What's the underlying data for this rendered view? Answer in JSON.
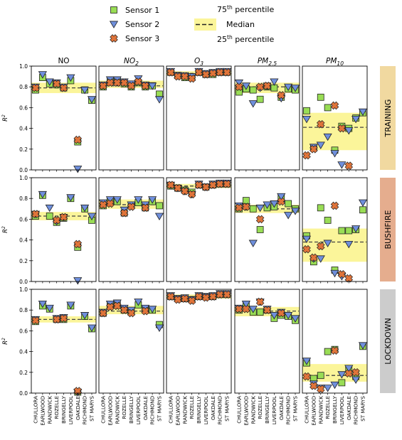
{
  "chart_data": {
    "type": "scatter",
    "legend": {
      "placement": "top",
      "sensor_entries": [
        "Sensor 1",
        "Sensor 2",
        "Sensor 3"
      ],
      "band": {
        "upper": {
          "main": "75",
          "sup": "th",
          "rest": " percentile"
        },
        "median": "Median",
        "lower": {
          "main": "25",
          "sup": "th",
          "rest": " percentile"
        }
      }
    },
    "colors": {
      "sensor1": "#99dd55",
      "sensor2": "#6f8fdc",
      "sensor3": "#e0743a",
      "band": "#fbf59a",
      "median": "#444444"
    },
    "ylabel": {
      "main": "R",
      "sup": "2"
    },
    "ylim": [
      0,
      1
    ],
    "yticks": [
      "0.0",
      "0.2",
      "0.4",
      "0.6",
      "0.8",
      "1.0"
    ],
    "columns": [
      {
        "label": "NO",
        "sub": ""
      },
      {
        "label": "NO",
        "sub": "2"
      },
      {
        "label": "O",
        "sub": "3"
      },
      {
        "label": "PM",
        "sub": "2.5"
      },
      {
        "label": "PM",
        "sub": "10"
      }
    ],
    "rows": [
      {
        "label": "TRAINING",
        "color": "#f1d9a0"
      },
      {
        "label": "BUSHFIRE",
        "color": "#e5ad8e"
      },
      {
        "label": "LOCKDOWN",
        "color": "#cccccc"
      }
    ],
    "sites": [
      "CHULLORA",
      "EARLWOOD",
      "RANDWICK",
      "ROZELLE",
      "BRINGELLY",
      "LIVERPOOL",
      "OAKDALE",
      "RICHMOND",
      "ST MARYS"
    ],
    "panels": [
      [
        {
          "band": [
            0.74,
            0.84
          ],
          "median": 0.79,
          "s1": [
            0.77,
            0.89,
            0.83,
            0.82,
            0.79,
            0.86,
            0.27,
            0.77,
            0.67
          ],
          "s2": [
            0.8,
            0.92,
            0.85,
            0.84,
            0.8,
            0.89,
            0.01,
            0.77,
            0.68
          ],
          "s3": [
            0.79,
            null,
            null,
            0.83,
            0.79,
            null,
            0.29,
            null,
            null
          ]
        },
        {
          "band": [
            0.79,
            0.86
          ],
          "median": 0.81,
          "s1": [
            0.8,
            0.85,
            0.86,
            0.83,
            0.8,
            0.84,
            0.8,
            0.81,
            0.73
          ],
          "s2": [
            0.82,
            0.87,
            0.87,
            0.85,
            0.83,
            0.88,
            0.82,
            0.81,
            0.68
          ],
          "s3": [
            0.81,
            0.84,
            0.84,
            0.84,
            0.81,
            0.85,
            0.81,
            null,
            null
          ]
        },
        {
          "band": [
            0.91,
            0.95
          ],
          "median": 0.93,
          "s1": [
            0.94,
            0.91,
            0.89,
            0.89,
            0.94,
            0.92,
            0.92,
            0.94,
            0.94
          ],
          "s2": [
            0.95,
            0.91,
            0.91,
            0.9,
            0.95,
            0.93,
            0.94,
            0.95,
            0.95
          ],
          "s3": [
            0.94,
            0.9,
            0.9,
            0.88,
            0.94,
            0.92,
            0.93,
            0.94,
            0.94
          ]
        },
        {
          "band": [
            0.74,
            0.84
          ],
          "median": 0.8,
          "s1": [
            0.75,
            0.78,
            0.77,
            0.68,
            0.8,
            0.79,
            0.7,
            0.78,
            0.77
          ],
          "s2": [
            0.84,
            0.81,
            0.64,
            0.79,
            0.81,
            0.85,
            0.69,
            0.8,
            0.79
          ],
          "s3": [
            0.8,
            null,
            null,
            0.8,
            0.81,
            null,
            0.72,
            null,
            null
          ]
        },
        {
          "band": [
            0.19,
            0.55
          ],
          "median": 0.41,
          "s1": [
            0.57,
            0.21,
            0.7,
            0.6,
            0.19,
            0.42,
            0.4,
            0.5,
            0.55
          ],
          "s2": [
            0.49,
            0.22,
            0.24,
            0.32,
            0.16,
            0.05,
            0.38,
            0.49,
            0.56
          ],
          "s3": [
            0.14,
            0.2,
            0.44,
            null,
            0.62,
            0.4,
            0.04,
            null,
            null
          ]
        }
      ],
      [
        {
          "band": [
            0.59,
            0.67
          ],
          "median": 0.63,
          "s1": [
            0.63,
            0.83,
            0.63,
            0.57,
            0.61,
            0.8,
            0.33,
            0.7,
            0.59
          ],
          "s2": [
            0.65,
            0.84,
            0.71,
            0.58,
            0.62,
            0.81,
            0.01,
            0.71,
            0.63
          ],
          "s3": [
            0.65,
            null,
            null,
            0.59,
            0.62,
            null,
            0.36,
            null,
            null
          ]
        },
        {
          "band": [
            0.7,
            0.79
          ],
          "median": 0.74,
          "s1": [
            0.73,
            0.77,
            0.77,
            0.66,
            0.73,
            0.76,
            0.71,
            0.77,
            0.73
          ],
          "s2": [
            0.76,
            0.79,
            0.79,
            0.69,
            0.74,
            0.79,
            0.74,
            0.79,
            0.63
          ],
          "s3": [
            0.74,
            0.75,
            null,
            0.66,
            0.72,
            null,
            0.71,
            null,
            null
          ]
        },
        {
          "band": [
            0.9,
            0.94
          ],
          "median": 0.92,
          "s1": [
            0.92,
            0.9,
            0.88,
            0.86,
            0.93,
            0.91,
            0.93,
            0.94,
            0.94
          ],
          "s2": [
            0.93,
            0.9,
            0.87,
            0.84,
            0.94,
            0.91,
            0.94,
            0.95,
            0.95
          ],
          "s3": [
            0.93,
            0.9,
            0.87,
            0.84,
            0.93,
            0.91,
            0.93,
            0.94,
            0.94
          ]
        },
        {
          "band": [
            0.66,
            0.74
          ],
          "median": 0.7,
          "s1": [
            0.7,
            0.78,
            0.7,
            0.5,
            0.71,
            0.72,
            0.8,
            0.75,
            0.7
          ],
          "s2": [
            0.73,
            0.72,
            0.37,
            0.71,
            0.74,
            0.75,
            0.82,
            0.64,
            0.68
          ],
          "s3": [
            0.71,
            0.72,
            null,
            0.6,
            null,
            null,
            0.77,
            null,
            null
          ]
        },
        {
          "band": [
            0.19,
            0.51
          ],
          "median": 0.38,
          "s1": [
            0.44,
            0.19,
            0.71,
            0.59,
            0.11,
            0.49,
            0.49,
            0.5,
            0.69
          ],
          "s2": [
            0.41,
            0.22,
            0.22,
            0.37,
            0.08,
            0.05,
            0.36,
            0.51,
            0.76
          ],
          "s3": [
            0.31,
            0.23,
            0.34,
            null,
            0.73,
            0.07,
            0.03,
            null,
            null
          ]
        }
      ],
      [
        {
          "band": [
            0.68,
            0.74
          ],
          "median": 0.71,
          "s1": [
            0.69,
            0.84,
            0.81,
            0.71,
            0.71,
            0.84,
            0.01,
            0.74,
            0.62
          ],
          "s2": [
            0.71,
            0.86,
            0.82,
            0.72,
            0.73,
            0.85,
            0.01,
            0.75,
            0.63
          ],
          "s3": [
            0.7,
            null,
            null,
            0.71,
            0.72,
            null,
            0.02,
            null,
            null
          ]
        },
        {
          "band": [
            0.76,
            0.84
          ],
          "median": 0.79,
          "s1": [
            0.77,
            0.84,
            0.85,
            0.8,
            0.78,
            0.85,
            0.8,
            0.8,
            0.66
          ],
          "s2": [
            0.78,
            0.86,
            0.87,
            0.82,
            0.8,
            0.88,
            0.82,
            0.81,
            0.63
          ],
          "s3": [
            0.77,
            0.83,
            0.84,
            0.8,
            0.77,
            null,
            0.79,
            null,
            null
          ]
        },
        {
          "band": [
            0.91,
            0.95
          ],
          "median": 0.93,
          "s1": [
            0.93,
            0.91,
            0.91,
            0.9,
            0.93,
            0.93,
            0.93,
            0.95,
            0.95
          ],
          "s2": [
            0.94,
            0.91,
            0.92,
            0.9,
            0.94,
            0.93,
            0.94,
            0.96,
            0.96
          ],
          "s3": [
            0.93,
            0.9,
            0.91,
            0.89,
            0.93,
            0.92,
            0.93,
            0.95,
            0.95
          ]
        },
        {
          "band": [
            0.74,
            0.83
          ],
          "median": 0.79,
          "s1": [
            0.8,
            0.85,
            0.78,
            0.78,
            0.8,
            0.72,
            0.75,
            0.74,
            0.7
          ],
          "s2": [
            0.82,
            0.86,
            0.81,
            0.88,
            0.81,
            0.75,
            0.78,
            0.75,
            0.72
          ],
          "s3": [
            0.81,
            0.81,
            null,
            0.88,
            0.8,
            null,
            0.77,
            null,
            null
          ]
        },
        {
          "band": [
            0.11,
            0.28
          ],
          "median": 0.17,
          "s1": [
            0.29,
            0.14,
            0.17,
            0.4,
            0.42,
            0.1,
            0.23,
            0.16,
            0.45
          ],
          "s2": [
            0.31,
            0.09,
            0.05,
            0.05,
            0.08,
            0.18,
            0.24,
            0.13,
            0.46
          ],
          "s3": [
            0.16,
            0.07,
            0.04,
            null,
            0.41,
            null,
            0.19,
            0.2,
            null
          ]
        }
      ]
    ]
  }
}
